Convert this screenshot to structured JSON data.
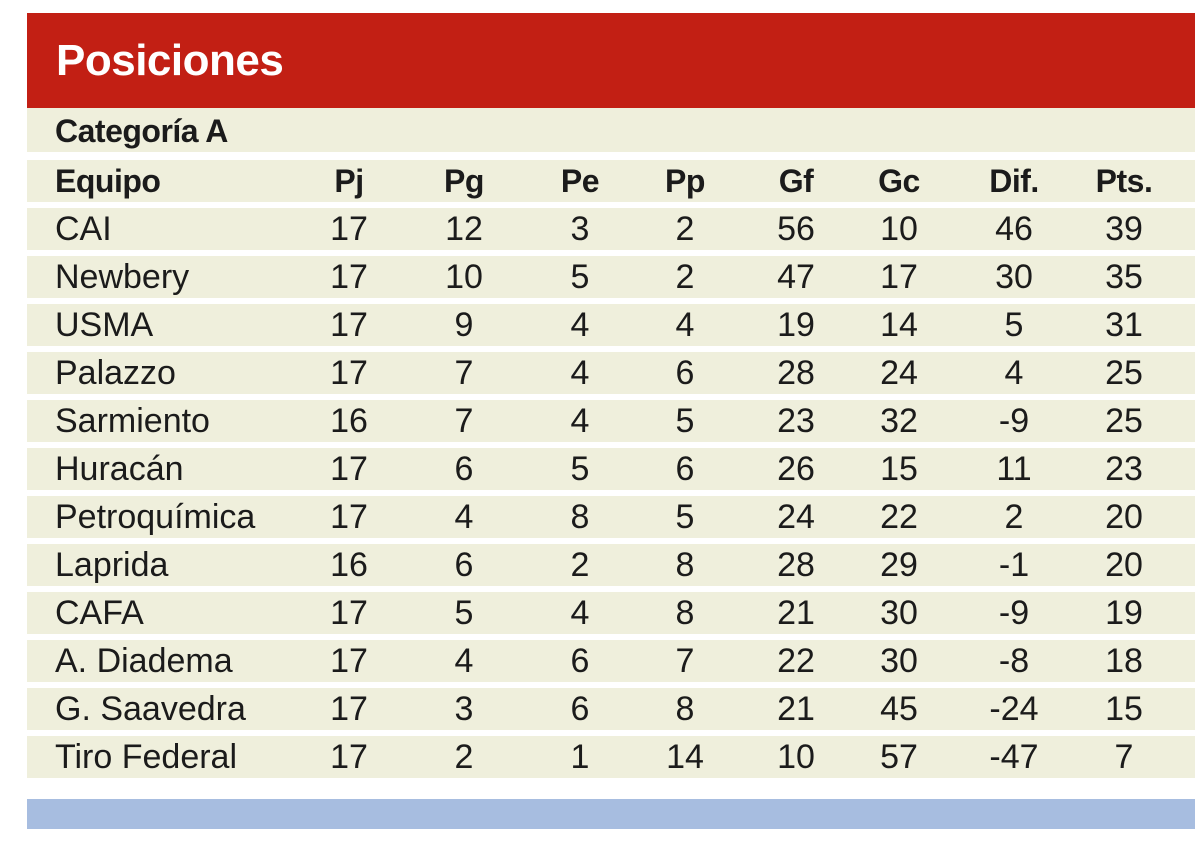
{
  "title": "Posiciones",
  "category": "Categoría A",
  "colors": {
    "title_bar": "#c21f14",
    "row_background": "#efefdc",
    "bottom_bar": "#a7bde0"
  },
  "chart_data": {
    "type": "table",
    "title": "Posiciones",
    "subtitle": "Categoría A",
    "columns": [
      "Equipo",
      "Pj",
      "Pg",
      "Pe",
      "Pp",
      "Gf",
      "Gc",
      "Dif.",
      "Pts."
    ],
    "rows": [
      [
        "CAI",
        "17",
        "12",
        "3",
        "2",
        "56",
        "10",
        "46",
        "39"
      ],
      [
        "Newbery",
        "17",
        "10",
        "5",
        "2",
        "47",
        "17",
        "30",
        "35"
      ],
      [
        "USMA",
        "17",
        "9",
        "4",
        "4",
        "19",
        "14",
        "5",
        "31"
      ],
      [
        "Palazzo",
        "17",
        "7",
        "4",
        "6",
        "28",
        "24",
        "4",
        "25"
      ],
      [
        "Sarmiento",
        "16",
        "7",
        "4",
        "5",
        "23",
        "32",
        "-9",
        "25"
      ],
      [
        "Huracán",
        "17",
        "6",
        "5",
        "6",
        "26",
        "15",
        "11",
        "23"
      ],
      [
        "Petroquímica",
        "17",
        "4",
        "8",
        "5",
        "24",
        "22",
        "2",
        "20"
      ],
      [
        "Laprida",
        "16",
        "6",
        "2",
        "8",
        "28",
        "29",
        "-1",
        "20"
      ],
      [
        "CAFA",
        "17",
        "5",
        "4",
        "8",
        "21",
        "30",
        "-9",
        "19"
      ],
      [
        "A. Diadema",
        "17",
        "4",
        "6",
        "7",
        "22",
        "30",
        "-8",
        "18"
      ],
      [
        "G. Saavedra",
        "17",
        "3",
        "6",
        "8",
        "21",
        "45",
        "-24",
        "15"
      ],
      [
        "Tiro Federal",
        "17",
        "2",
        "1",
        "14",
        "10",
        "57",
        "-47",
        "7"
      ]
    ]
  }
}
